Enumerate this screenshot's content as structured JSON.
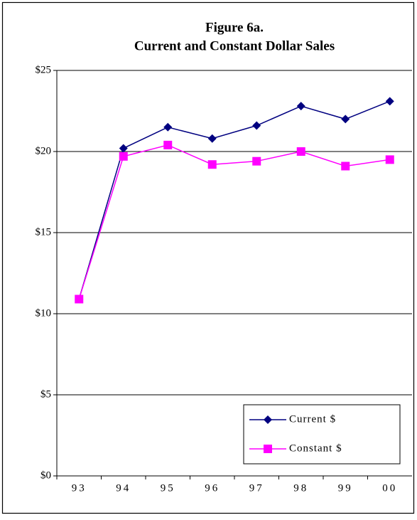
{
  "chart_data": {
    "type": "line",
    "title": "Figure 6a.",
    "subtitle": "Current and Constant Dollar Sales",
    "categories": [
      "93",
      "94",
      "95",
      "96",
      "97",
      "98",
      "99",
      "00"
    ],
    "series": [
      {
        "name": "Current $",
        "color": "#000080",
        "marker": "diamond",
        "values": [
          10.9,
          20.2,
          21.5,
          20.8,
          21.6,
          22.8,
          22.0,
          23.1
        ]
      },
      {
        "name": "Constant $",
        "color": "#ff00ff",
        "marker": "square",
        "values": [
          10.9,
          19.7,
          20.4,
          19.2,
          19.4,
          20.0,
          19.1,
          19.5
        ]
      }
    ],
    "ylim": [
      0,
      25
    ],
    "yticks": [
      {
        "value": 0,
        "label": "$0"
      },
      {
        "value": 5,
        "label": "$5"
      },
      {
        "value": 10,
        "label": "$10"
      },
      {
        "value": 15,
        "label": "$15"
      },
      {
        "value": 20,
        "label": "$20"
      },
      {
        "value": 25,
        "label": "$25"
      }
    ],
    "grid": true,
    "legend": "lower right"
  }
}
